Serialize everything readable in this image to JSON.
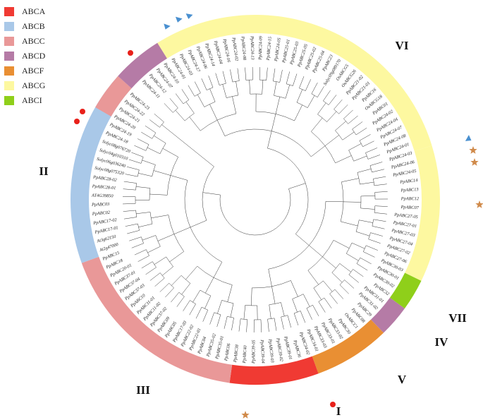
{
  "legend": [
    {
      "label": "ABCA",
      "color": "#f03a33"
    },
    {
      "label": "ABCB",
      "color": "#a9c8e8"
    },
    {
      "label": "ABCC",
      "color": "#e99898"
    },
    {
      "label": "ABCD",
      "color": "#b57ba6"
    },
    {
      "label": "ABCF",
      "color": "#e98f33"
    },
    {
      "label": "ABCG",
      "color": "#fdf8a0"
    },
    {
      "label": "ABCI",
      "color": "#8fcf1a"
    }
  ],
  "groups": [
    {
      "roman": "I",
      "subfamily": "ABCA"
    },
    {
      "roman": "II",
      "subfamily": "ABCB"
    },
    {
      "roman": "III",
      "subfamily": "ABCC"
    },
    {
      "roman": "IV",
      "subfamily": "ABCD"
    },
    {
      "roman": "V",
      "subfamily": "ABCF"
    },
    {
      "roman": "VI",
      "subfamily": "ABCG"
    },
    {
      "roman": "VII",
      "subfamily": "ABCI"
    }
  ],
  "markers": {
    "circle_color": "#e8201a",
    "star_color": "#d08a4a",
    "triangle_color": "#4a90d0"
  },
  "leaves": [
    "PpABC24-11",
    "PpABC24-12",
    "PpABC24-07",
    "PpABC24-10",
    "PpABC24-01",
    "PpABC24-03",
    "PpABC24-17",
    "PpABC24-06",
    "PpABC24-14",
    "PpABC24-04",
    "PpABC24-16",
    "PpABC24-02",
    "PpABC24-08",
    "PpABC24-13",
    "PpABC24-09",
    "PpABC24-15",
    "PpABC24-05",
    "PpABC25-01",
    "PpABC25-03",
    "PpABC25-05",
    "PpABC25-02",
    "PpABC25-04",
    "PpABC23",
    "Solyc09g089170",
    "OsABCG5",
    "OsABCG26",
    "PpABC21-02",
    "PpABC21-01",
    "PpABC16",
    "OsABCG18",
    "PpABC01",
    "PpABC24-02",
    "PpABC24-04",
    "PpABC24-07",
    "PpABC24-08",
    "PpABC24-01",
    "PpABC24-03",
    "PpABC24-06",
    "PpABC24-05",
    "PpABC14",
    "PpABC13",
    "PpABC12",
    "PpABC07",
    "PpABC27-05",
    "PpABC27-01",
    "PpABC27-03",
    "PpABC27-04",
    "PpABC27-02",
    "PpABC27-06",
    "PpABC30-03",
    "PpABC30-01",
    "PpABC30-02",
    "PpABC32",
    "PpABC31-01",
    "PpABC31-02",
    "PpABC29",
    "PpABC08",
    "OsABCC1",
    "PpABC30",
    "PpABC33-02",
    "PpABC33-01",
    "PpABC33-03",
    "PpABC34-01",
    "PpABC34-02",
    "PpABC36",
    "PpABC39-01",
    "PpABC39-02",
    "PpABC39-03",
    "PpABC39-04",
    "PpABC39-05",
    "PpABC40",
    "PpABC38",
    "PpABC06",
    "PpABC35-01",
    "PpABC35-02",
    "PpABC04",
    "PpABC22-01",
    "PpABC22-02",
    "PpABC17-03",
    "PpABC05",
    "PpABC09",
    "PpABC37-02",
    "PpABC11-02",
    "PpABC11-01",
    "PpABC10",
    "PpABC37-03",
    "PpABC37-04",
    "PpABC37-01",
    "PpABC20-01",
    "PpABC18",
    "PpABC15",
    "At2g47000",
    "At3g62150",
    "PpABC17-01",
    "PpABC17-02",
    "PpABC02",
    "PpABC03",
    "AT4G39850",
    "PpABC28-01",
    "PpABC28-02",
    "Solyc08g075320",
    "Solyc06g036240",
    "Solyc04g010310",
    "Solyc08g076720",
    "PpABC24-18",
    "PpABC24-19",
    "PpABC24-20",
    "PpABC24-21",
    "PpABC24-22",
    "PpABC24-23"
  ]
}
